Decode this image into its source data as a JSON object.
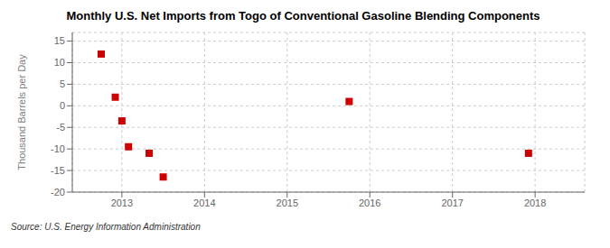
{
  "chart_data": {
    "type": "scatter",
    "title": "Monthly U.S. Net Imports from Togo of Conventional Gasoline Blending Components",
    "ylabel": "Thousand Barrels per Day",
    "annotations": [
      "Source: U.S. Energy Information Administration"
    ],
    "x": [
      2012.75,
      2012.92,
      2013.0,
      2013.08,
      2013.33,
      2013.5,
      2015.75,
      2017.92
    ],
    "values": [
      12,
      2,
      -3.5,
      -9.5,
      -11,
      -16.5,
      1,
      -11
    ],
    "color": "#cc0000",
    "marker": "square",
    "xlim": [
      2012.4,
      2018.6
    ],
    "ylim": [
      -20,
      17
    ],
    "xticks": [
      2013,
      2014,
      2015,
      2016,
      2017,
      2018
    ],
    "yticks": [
      -20,
      -15,
      -10,
      -5,
      0,
      5,
      10,
      15
    ],
    "grid": true
  }
}
